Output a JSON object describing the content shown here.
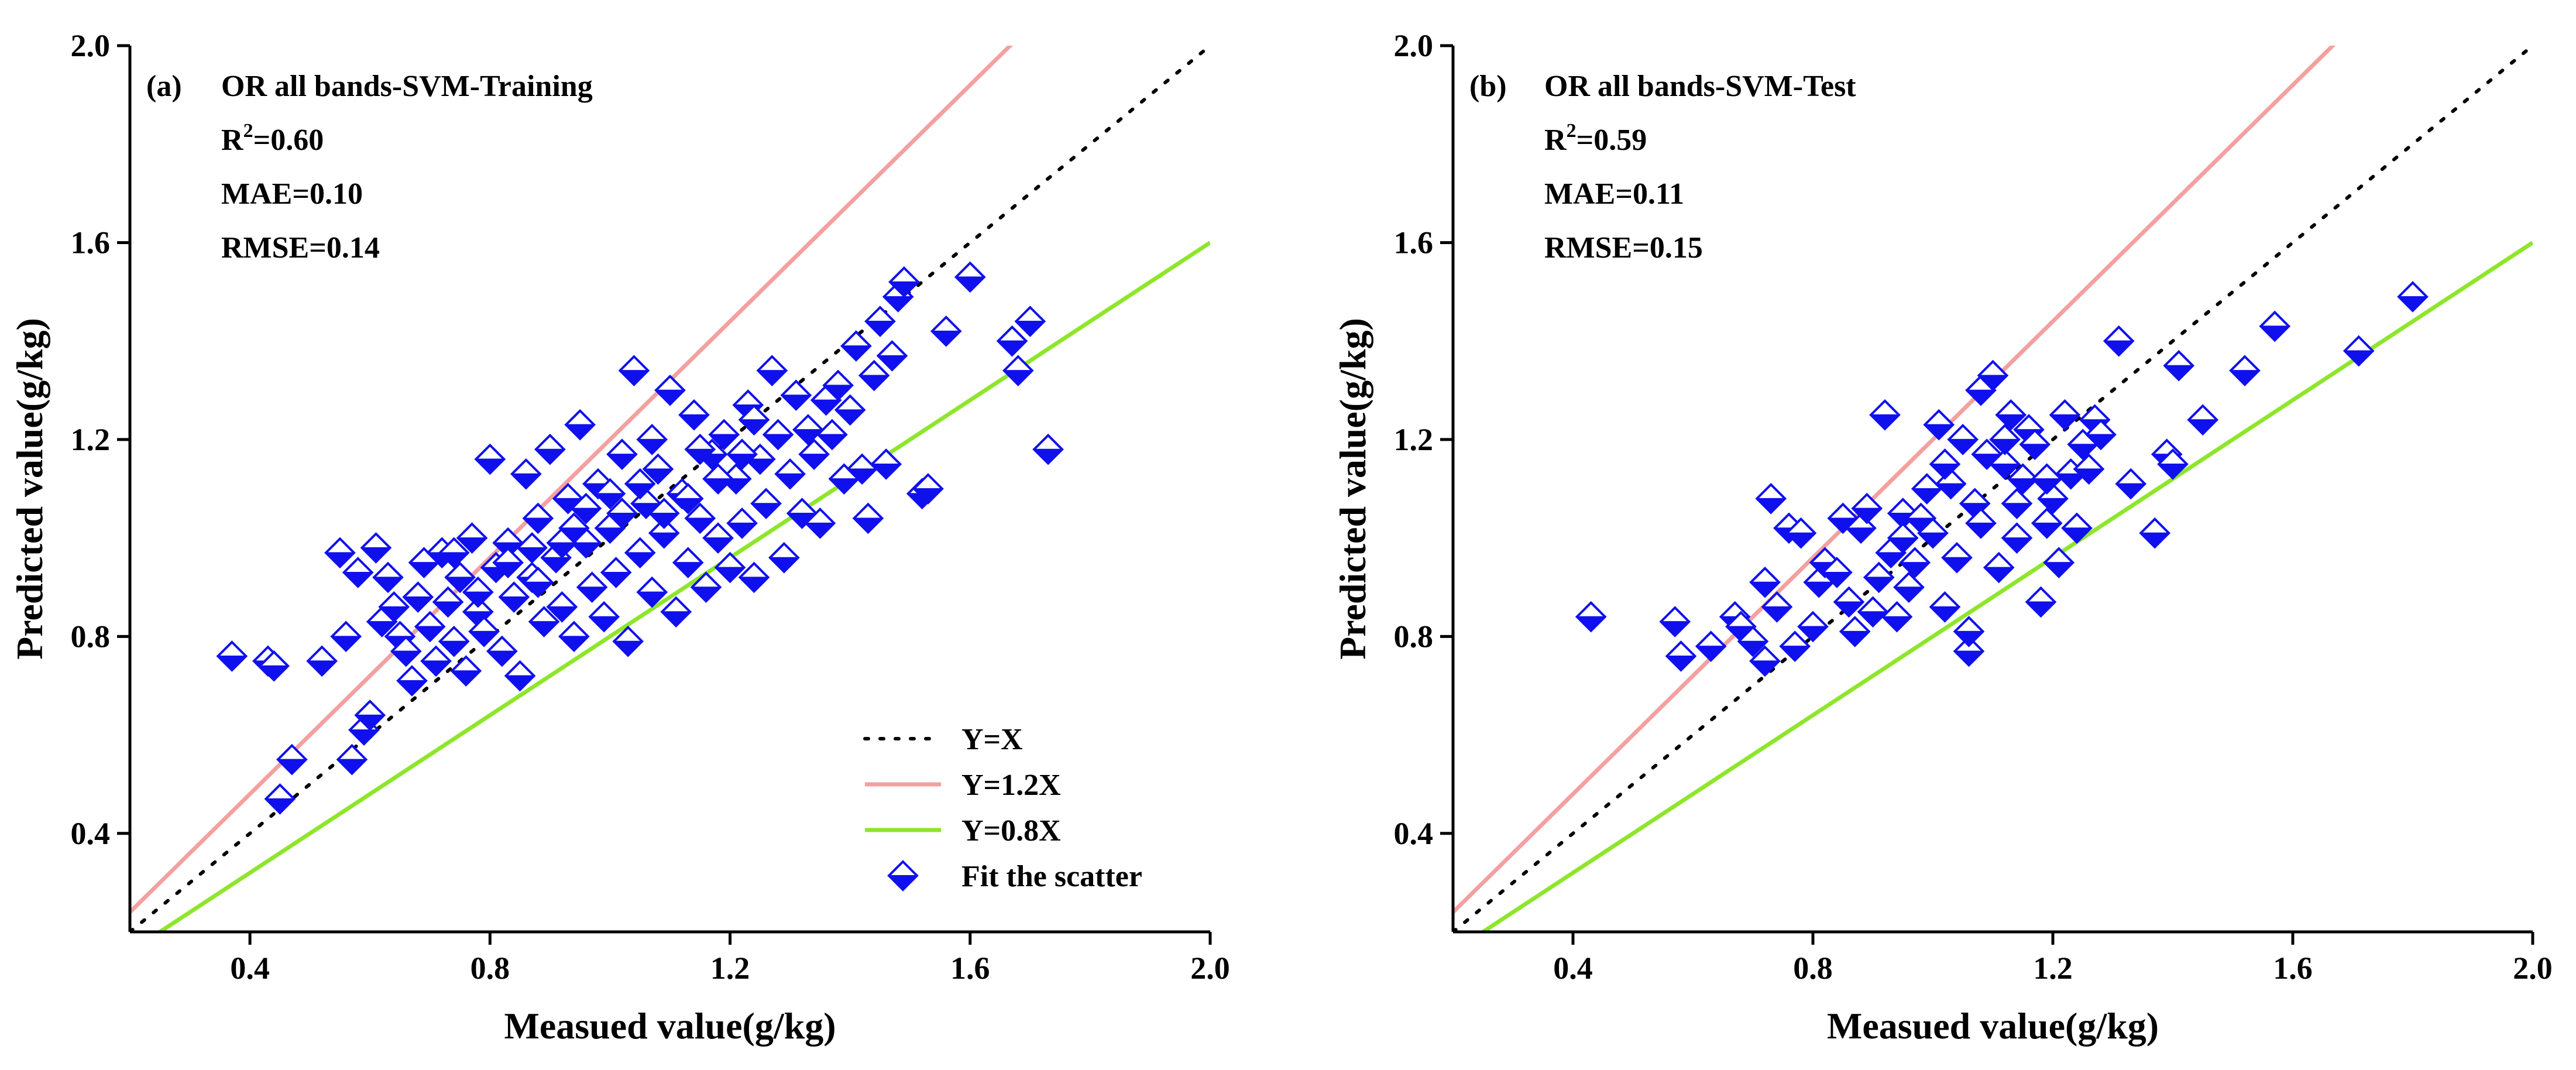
{
  "chart_data": [
    {
      "type": "scatter",
      "panel_label": "(a)",
      "title": "OR all bands-SVM-Training",
      "stats": {
        "r2_prefix": "R",
        "r2_sup": "2",
        "r2_value": "=0.60",
        "mae": "MAE=0.10",
        "rmse": "RMSE=0.14"
      },
      "xlabel": "Measued value(g/kg)",
      "ylabel": "Predicted value(g/kg)",
      "xlim": [
        0.2,
        2.0
      ],
      "ylim": [
        0.2,
        2.0
      ],
      "xticks": [
        "0.4",
        "0.8",
        "1.2",
        "1.6",
        "2.0"
      ],
      "yticks": [
        "0.4",
        "0.8",
        "1.2",
        "1.6",
        "2.0"
      ],
      "reference_lines": [
        {
          "name": "Y=X",
          "slope": 1.0,
          "color": "#000000",
          "style": "dotted"
        },
        {
          "name": "Y=1.2X",
          "slope": 1.2,
          "color": "#f4a0a0",
          "style": "solid"
        },
        {
          "name": "Y=0.8X",
          "slope": 0.8,
          "color": "#8ee62c",
          "style": "solid"
        }
      ],
      "legend": {
        "position": "bottom-right",
        "entries": [
          "Y=X",
          "Y=1.2X",
          "Y=0.8X",
          "Fit the scatter"
        ]
      },
      "series": [
        {
          "name": "Fit the scatter",
          "color": "#1010ee",
          "points": [
            [
              0.37,
              0.76
            ],
            [
              0.43,
              0.75
            ],
            [
              0.44,
              0.74
            ],
            [
              0.45,
              0.47
            ],
            [
              0.47,
              0.55
            ],
            [
              0.52,
              0.75
            ],
            [
              0.55,
              0.97
            ],
            [
              0.56,
              0.8
            ],
            [
              0.57,
              0.55
            ],
            [
              0.58,
              0.93
            ],
            [
              0.59,
              0.61
            ],
            [
              0.6,
              0.64
            ],
            [
              0.61,
              0.98
            ],
            [
              0.62,
              0.83
            ],
            [
              0.63,
              0.92
            ],
            [
              0.64,
              0.86
            ],
            [
              0.65,
              0.8
            ],
            [
              0.66,
              0.77
            ],
            [
              0.67,
              0.71
            ],
            [
              0.68,
              0.88
            ],
            [
              0.69,
              0.95
            ],
            [
              0.7,
              0.82
            ],
            [
              0.71,
              0.75
            ],
            [
              0.72,
              0.97
            ],
            [
              0.73,
              0.87
            ],
            [
              0.74,
              0.79
            ],
            [
              0.75,
              0.92
            ],
            [
              0.76,
              0.73
            ],
            [
              0.77,
              1.0
            ],
            [
              0.78,
              0.85
            ],
            [
              0.79,
              0.81
            ],
            [
              0.8,
              1.16
            ],
            [
              0.81,
              0.94
            ],
            [
              0.82,
              0.77
            ],
            [
              0.83,
              0.99
            ],
            [
              0.84,
              0.88
            ],
            [
              0.85,
              0.72
            ],
            [
              0.86,
              1.13
            ],
            [
              0.87,
              0.92
            ],
            [
              0.88,
              1.04
            ],
            [
              0.89,
              0.83
            ],
            [
              0.9,
              1.18
            ],
            [
              0.91,
              0.96
            ],
            [
              0.92,
              0.86
            ],
            [
              0.93,
              1.08
            ],
            [
              0.94,
              0.8
            ],
            [
              0.95,
              1.23
            ],
            [
              0.96,
              0.99
            ],
            [
              0.97,
              0.9
            ],
            [
              0.98,
              1.11
            ],
            [
              0.99,
              0.84
            ],
            [
              1.0,
              1.02
            ],
            [
              1.01,
              0.93
            ],
            [
              1.02,
              1.17
            ],
            [
              1.03,
              0.79
            ],
            [
              1.04,
              1.34
            ],
            [
              1.05,
              0.97
            ],
            [
              1.06,
              1.07
            ],
            [
              1.07,
              0.89
            ],
            [
              1.08,
              1.14
            ],
            [
              1.09,
              1.01
            ],
            [
              1.1,
              1.3
            ],
            [
              1.11,
              0.85
            ],
            [
              1.12,
              1.09
            ],
            [
              1.13,
              0.95
            ],
            [
              1.14,
              1.25
            ],
            [
              1.15,
              1.04
            ],
            [
              1.16,
              0.9
            ],
            [
              1.17,
              1.17
            ],
            [
              1.18,
              1.0
            ],
            [
              1.19,
              1.21
            ],
            [
              1.2,
              0.94
            ],
            [
              1.21,
              1.12
            ],
            [
              1.22,
              1.03
            ],
            [
              1.23,
              1.27
            ],
            [
              1.24,
              0.92
            ],
            [
              1.25,
              1.16
            ],
            [
              1.26,
              1.07
            ],
            [
              1.27,
              1.34
            ],
            [
              1.28,
              1.21
            ],
            [
              1.29,
              0.96
            ],
            [
              1.3,
              1.13
            ],
            [
              1.31,
              1.29
            ],
            [
              1.32,
              1.05
            ],
            [
              1.33,
              1.22
            ],
            [
              1.34,
              1.17
            ],
            [
              1.35,
              1.03
            ],
            [
              1.36,
              1.28
            ],
            [
              1.37,
              1.21
            ],
            [
              1.38,
              1.31
            ],
            [
              1.39,
              1.12
            ],
            [
              1.4,
              1.26
            ],
            [
              1.41,
              1.39
            ],
            [
              1.42,
              1.14
            ],
            [
              1.43,
              1.04
            ],
            [
              1.44,
              1.33
            ],
            [
              1.45,
              1.44
            ],
            [
              1.46,
              1.15
            ],
            [
              1.47,
              1.37
            ],
            [
              1.48,
              1.49
            ],
            [
              1.49,
              1.52
            ],
            [
              1.52,
              1.09
            ],
            [
              1.53,
              1.1
            ],
            [
              1.56,
              1.42
            ],
            [
              1.6,
              1.53
            ],
            [
              1.67,
              1.4
            ],
            [
              1.68,
              1.34
            ],
            [
              1.7,
              1.44
            ],
            [
              1.73,
              1.18
            ],
            [
              0.74,
              0.97
            ],
            [
              0.78,
              0.89
            ],
            [
              0.83,
              0.95
            ],
            [
              0.88,
              0.91
            ],
            [
              0.92,
              0.99
            ],
            [
              0.96,
              1.06
            ],
            [
              1.0,
              1.09
            ],
            [
              1.05,
              1.11
            ],
            [
              1.09,
              1.05
            ],
            [
              1.13,
              1.08
            ],
            [
              1.18,
              1.12
            ],
            [
              1.22,
              1.17
            ],
            [
              0.87,
              0.98
            ],
            [
              0.94,
              1.02
            ],
            [
              1.02,
              1.05
            ],
            [
              1.07,
              1.2
            ],
            [
              1.15,
              1.18
            ],
            [
              1.24,
              1.24
            ]
          ]
        }
      ]
    },
    {
      "type": "scatter",
      "panel_label": "(b)",
      "title": "OR all bands-SVM-Test",
      "stats": {
        "r2_prefix": "R",
        "r2_sup": "2",
        "r2_value": "=0.59",
        "mae": "MAE=0.11",
        "rmse": "RMSE=0.15"
      },
      "xlabel": "Measued value(g/kg)",
      "ylabel": "Predicted value(g/kg)",
      "xlim": [
        0.2,
        2.0
      ],
      "ylim": [
        0.2,
        2.0
      ],
      "xticks": [
        "0.4",
        "0.8",
        "1.2",
        "1.6",
        "2.0"
      ],
      "yticks": [
        "0.4",
        "0.8",
        "1.2",
        "1.6",
        "2.0"
      ],
      "reference_lines": [
        {
          "name": "Y=X",
          "slope": 1.0,
          "color": "#000000",
          "style": "dotted"
        },
        {
          "name": "Y=1.2X",
          "slope": 1.2,
          "color": "#f4a0a0",
          "style": "solid"
        },
        {
          "name": "Y=0.8X",
          "slope": 0.8,
          "color": "#8ee62c",
          "style": "solid"
        }
      ],
      "series": [
        {
          "name": "Fit the scatter",
          "color": "#1010ee",
          "points": [
            [
              0.43,
              0.84
            ],
            [
              0.57,
              0.83
            ],
            [
              0.58,
              0.76
            ],
            [
              0.63,
              0.78
            ],
            [
              0.67,
              0.84
            ],
            [
              0.68,
              0.82
            ],
            [
              0.7,
              0.79
            ],
            [
              0.72,
              0.91
            ],
            [
              0.72,
              0.75
            ],
            [
              0.73,
              1.08
            ],
            [
              0.74,
              0.86
            ],
            [
              0.76,
              1.02
            ],
            [
              0.77,
              0.78
            ],
            [
              0.78,
              1.01
            ],
            [
              0.8,
              0.82
            ],
            [
              0.81,
              0.91
            ],
            [
              0.82,
              0.95
            ],
            [
              0.84,
              0.93
            ],
            [
              0.85,
              1.04
            ],
            [
              0.86,
              0.87
            ],
            [
              0.87,
              0.81
            ],
            [
              0.88,
              1.02
            ],
            [
              0.89,
              1.06
            ],
            [
              0.9,
              0.85
            ],
            [
              0.91,
              0.92
            ],
            [
              0.92,
              1.25
            ],
            [
              0.93,
              0.97
            ],
            [
              0.94,
              0.84
            ],
            [
              0.95,
              1.05
            ],
            [
              0.96,
              0.9
            ],
            [
              0.97,
              0.95
            ],
            [
              0.98,
              1.04
            ],
            [
              0.99,
              1.1
            ],
            [
              1.0,
              1.01
            ],
            [
              1.01,
              1.23
            ],
            [
              1.02,
              0.86
            ],
            [
              1.03,
              1.11
            ],
            [
              1.04,
              0.96
            ],
            [
              1.05,
              1.2
            ],
            [
              1.06,
              0.77
            ],
            [
              1.06,
              0.81
            ],
            [
              1.07,
              1.07
            ],
            [
              1.08,
              1.3
            ],
            [
              1.09,
              1.17
            ],
            [
              1.1,
              1.33
            ],
            [
              1.11,
              0.94
            ],
            [
              1.12,
              1.15
            ],
            [
              1.13,
              1.25
            ],
            [
              1.14,
              1.0
            ],
            [
              1.15,
              1.12
            ],
            [
              1.16,
              1.22
            ],
            [
              1.17,
              1.19
            ],
            [
              1.18,
              0.87
            ],
            [
              1.19,
              1.03
            ],
            [
              1.2,
              1.08
            ],
            [
              1.21,
              0.95
            ],
            [
              1.22,
              1.25
            ],
            [
              1.23,
              1.13
            ],
            [
              1.24,
              1.02
            ],
            [
              1.25,
              1.19
            ],
            [
              1.26,
              1.14
            ],
            [
              1.27,
              1.24
            ],
            [
              1.28,
              1.21
            ],
            [
              1.31,
              1.4
            ],
            [
              1.33,
              1.11
            ],
            [
              1.37,
              1.01
            ],
            [
              1.39,
              1.17
            ],
            [
              1.4,
              1.15
            ],
            [
              1.41,
              1.35
            ],
            [
              1.45,
              1.24
            ],
            [
              1.52,
              1.34
            ],
            [
              1.57,
              1.43
            ],
            [
              1.71,
              1.38
            ],
            [
              1.8,
              1.49
            ],
            [
              1.02,
              1.15
            ],
            [
              1.08,
              1.03
            ],
            [
              1.14,
              1.07
            ],
            [
              0.95,
              1.0
            ],
            [
              1.12,
              1.2
            ],
            [
              1.19,
              1.12
            ]
          ]
        }
      ]
    }
  ]
}
